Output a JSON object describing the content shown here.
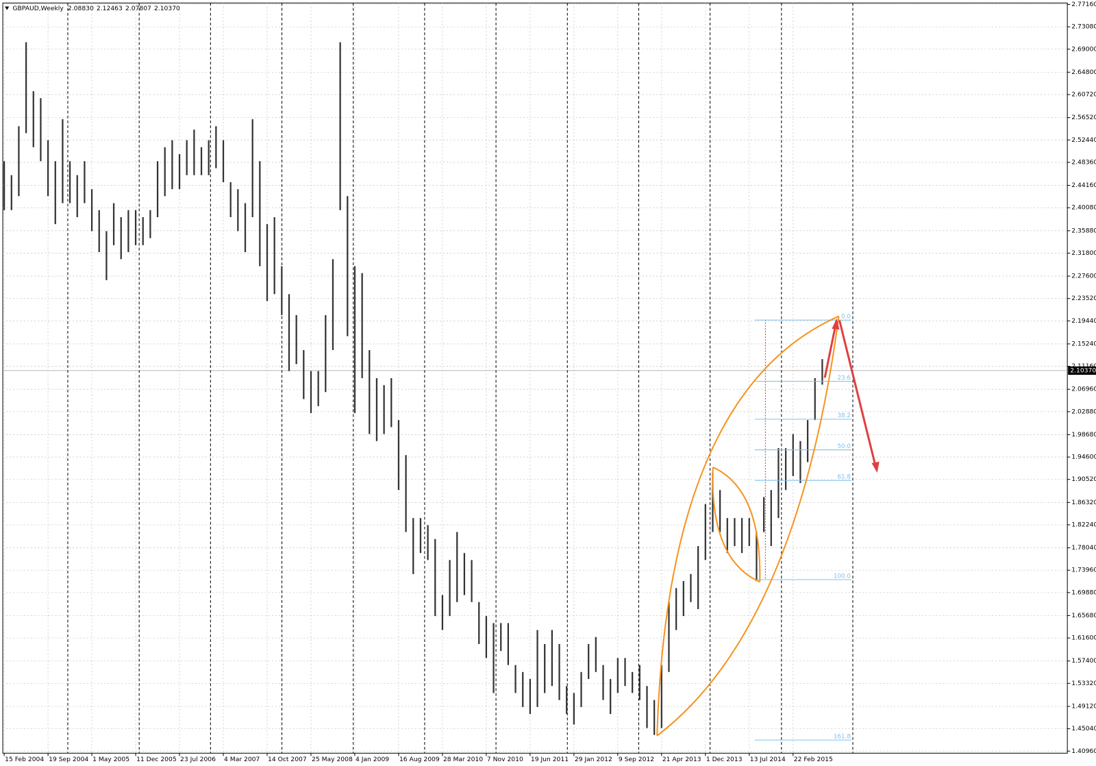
{
  "chart_data": {
    "type": "ohlc",
    "symbol": "GBPAUD,Weekly",
    "header_values": [
      {
        "value": 2.0883,
        "label": "2.08830"
      },
      {
        "value": 2.12463,
        "label": "2.12463"
      },
      {
        "value": 2.07807,
        "label": "2.07807"
      },
      {
        "value": 2.1037,
        "label": "2.10370"
      }
    ],
    "categories": [
      "15 Feb 2004",
      null,
      null,
      null,
      null,
      null,
      "19 Sep 2004",
      null,
      null,
      null,
      null,
      null,
      "1 May 2005",
      null,
      null,
      null,
      null,
      null,
      "11 Dec 2005",
      null,
      null,
      null,
      null,
      null,
      "23 Jul 2006",
      null,
      null,
      null,
      null,
      null,
      "4 Mar 2007",
      null,
      null,
      null,
      null,
      null,
      "14 Oct 2007",
      null,
      null,
      null,
      null,
      null,
      "25 May 2008",
      null,
      null,
      null,
      null,
      null,
      "4 Jan 2009",
      null,
      null,
      null,
      null,
      null,
      "16 Aug 2009",
      null,
      null,
      null,
      null,
      null,
      "28 Mar 2010",
      null,
      null,
      null,
      null,
      null,
      "7 Nov 2010",
      null,
      null,
      null,
      null,
      null,
      "19 Jun 2011",
      null,
      null,
      null,
      null,
      null,
      "29 Jan 2012",
      null,
      null,
      null,
      null,
      null,
      "9 Sep 2012",
      null,
      null,
      null,
      null,
      null,
      "21 Apr 2013",
      null,
      null,
      null,
      null,
      null,
      "1 Dec 2013",
      null,
      null,
      null,
      null,
      null,
      "13 Jul 2014",
      null,
      null,
      null,
      null,
      null,
      "22 Feb 2015",
      null,
      null,
      null,
      null
    ],
    "high": [
      2.4857,
      2.4602,
      2.5495,
      2.7027,
      2.6134,
      2.6006,
      2.524,
      2.4857,
      2.5623,
      2.4857,
      2.4602,
      2.4857,
      2.4346,
      2.3964,
      2.3581,
      2.4091,
      2.3836,
      2.3964,
      2.3964,
      2.3836,
      2.3964,
      2.4857,
      2.5112,
      2.524,
      2.4985,
      2.524,
      2.5432,
      2.5112,
      2.524,
      2.5495,
      2.524,
      2.4474,
      2.4346,
      2.4091,
      2.5623,
      2.4857,
      2.3708,
      2.3836,
      2.2942,
      2.2432,
      2.2049,
      2.1411,
      2.1028,
      2.1028,
      2.2049,
      2.307,
      2.7027,
      2.4219,
      2.2942,
      2.2815,
      2.1411,
      2.09,
      2.0772,
      2.09,
      2.0134,
      1.9496,
      1.8347,
      1.8347,
      1.8219,
      1.7964,
      1.6943,
      1.7581,
      1.8092,
      1.7709,
      1.7581,
      1.6815,
      1.656,
      1.6432,
      1.6432,
      1.6432,
      1.5666,
      1.5539,
      1.5411,
      1.6305,
      1.6049,
      1.6305,
      1.6049,
      1.5283,
      1.5156,
      1.5539,
      1.6049,
      1.6177,
      1.5666,
      1.5411,
      1.5794,
      1.5794,
      1.5539,
      1.5666,
      1.5283,
      1.5028,
      1.5666,
      1.6815,
      1.707,
      1.7198,
      1.7326,
      1.7836,
      1.8602,
      1.9177,
      1.8858,
      1.8347,
      1.8347,
      1.8347,
      1.8347,
      1.8092,
      1.873,
      1.8858,
      1.9623,
      1.9623,
      1.9879,
      1.9751,
      2.0134,
      2.09,
      2.12463
    ],
    "low": [
      2.3964,
      2.3964,
      2.4219,
      2.5368,
      2.5112,
      2.4857,
      2.4219,
      2.3708,
      2.4091,
      2.4091,
      2.3836,
      2.4091,
      2.3581,
      2.3198,
      2.2687,
      2.3325,
      2.307,
      2.3198,
      2.3325,
      2.3325,
      2.3453,
      2.3836,
      2.4219,
      2.4346,
      2.4346,
      2.4602,
      2.4602,
      2.4602,
      2.4602,
      2.4729,
      2.4474,
      2.3836,
      2.3581,
      2.3198,
      2.3836,
      2.2942,
      2.2304,
      2.2432,
      2.2049,
      2.1028,
      2.1155,
      2.0517,
      2.0262,
      2.0389,
      2.0645,
      2.1411,
      2.3964,
      2.1666,
      2.0262,
      2.09,
      1.9879,
      1.9751,
      1.9879,
      2.0006,
      1.8858,
      1.8092,
      1.7326,
      1.7709,
      1.7581,
      1.656,
      1.6305,
      1.656,
      1.6815,
      1.6943,
      1.6815,
      1.6049,
      1.5794,
      1.5156,
      1.5922,
      1.5666,
      1.5156,
      1.49,
      1.4773,
      1.49,
      1.5156,
      1.5283,
      1.5028,
      1.4773,
      1.4581,
      1.49,
      1.5411,
      1.5539,
      1.5028,
      1.4773,
      1.5156,
      1.5283,
      1.5156,
      1.5028,
      1.4517,
      1.439,
      1.4517,
      1.5539,
      1.6305,
      1.656,
      1.6815,
      1.6687,
      1.7581,
      1.8092,
      1.8092,
      1.7709,
      1.7836,
      1.7709,
      1.7836,
      1.7198,
      1.8092,
      1.7836,
      1.8347,
      1.8858,
      1.9113,
      1.8985,
      1.9368,
      2.0134,
      2.07807
    ],
    "color": "#333333",
    "ylim": [
      1.4058,
      2.7742
    ],
    "yticks": [
      {
        "value": 2.7716,
        "label": "2.77160"
      },
      {
        "value": 2.7308,
        "label": "2.73080"
      },
      {
        "value": 2.69,
        "label": "2.69000"
      },
      {
        "value": 2.648,
        "label": "2.64800"
      },
      {
        "value": 2.6072,
        "label": "2.60720"
      },
      {
        "value": 2.5652,
        "label": "2.56520"
      },
      {
        "value": 2.5244,
        "label": "2.52440"
      },
      {
        "value": 2.4836,
        "label": "2.48360"
      },
      {
        "value": 2.4416,
        "label": "2.44160"
      },
      {
        "value": 2.4008,
        "label": "2.40080"
      },
      {
        "value": 2.3588,
        "label": "2.35880"
      },
      {
        "value": 2.318,
        "label": "2.31800"
      },
      {
        "value": 2.276,
        "label": "2.27600"
      },
      {
        "value": 2.2352,
        "label": "2.23520"
      },
      {
        "value": 2.1944,
        "label": "2.19440"
      },
      {
        "value": 2.1524,
        "label": "2.15240"
      },
      {
        "value": 2.1116,
        "label": "2.11160"
      },
      {
        "value": 2.0696,
        "label": "2.06960"
      },
      {
        "value": 2.0288,
        "label": "2.02880"
      },
      {
        "value": 1.9868,
        "label": "1.98680"
      },
      {
        "value": 1.946,
        "label": "1.94600"
      },
      {
        "value": 1.9052,
        "label": "1.90520"
      },
      {
        "value": 1.8632,
        "label": "1.86320"
      },
      {
        "value": 1.8224,
        "label": "1.82240"
      },
      {
        "value": 1.7804,
        "label": "1.78040"
      },
      {
        "value": 1.7396,
        "label": "1.73960"
      },
      {
        "value": 1.6988,
        "label": "1.69880"
      },
      {
        "value": 1.6568,
        "label": "1.65680"
      },
      {
        "value": 1.616,
        "label": "1.61600"
      },
      {
        "value": 1.574,
        "label": "1.57400"
      },
      {
        "value": 1.5332,
        "label": "1.53320"
      },
      {
        "value": 1.4912,
        "label": "1.49120"
      },
      {
        "value": 1.4504,
        "label": "1.45040"
      },
      {
        "value": 1.4096,
        "label": "1.40960"
      }
    ],
    "grid": true,
    "current_price": {
      "value": 2.1037,
      "label": "2.10370"
    },
    "fibonacci": {
      "high": 2.1959,
      "low": 1.7224,
      "color": "#7cc0ee",
      "levels": [
        {
          "value": 0,
          "label": "0.0"
        },
        23.6,
        38.2,
        {
          "value": 50,
          "label": "50.0"
        },
        61.8,
        {
          "value": 100,
          "label": "100.0"
        },
        161.8
      ]
    }
  }
}
